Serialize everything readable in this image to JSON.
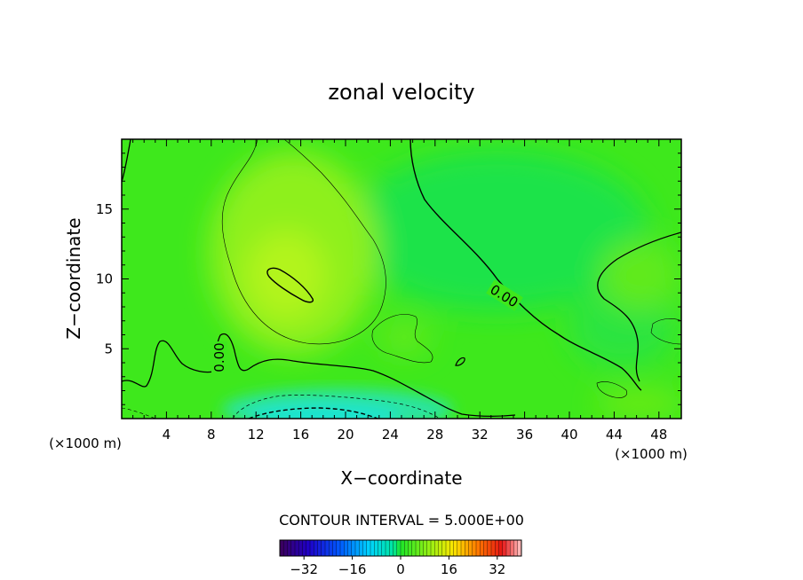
{
  "chart_data": {
    "type": "heatmap",
    "title": "zonal velocity",
    "xlabel": "X−coordinate",
    "ylabel": "Z−coordinate",
    "x_unit_left": "(×1000 m)",
    "x_unit_right": "(×1000 m)",
    "xlim": [
      0,
      50
    ],
    "ylim": [
      0,
      20
    ],
    "xticks": [
      4,
      8,
      12,
      16,
      20,
      24,
      28,
      32,
      36,
      40,
      44,
      48
    ],
    "yticks": [
      5,
      10,
      15
    ],
    "contour_interval_text": "CONTOUR INTERVAL = 5.000E+00",
    "contour_labels": [
      {
        "text": "0.00",
        "x": 34.0,
        "z": 8.4
      },
      {
        "text": "0.00",
        "x": 9.4,
        "z": 4.7
      }
    ],
    "colorbar": {
      "range": [
        -40,
        40
      ],
      "ticks": [
        -32,
        -16,
        0,
        16,
        32
      ],
      "tick_labels": [
        "−32",
        "−16",
        "0",
        "16",
        "32"
      ]
    },
    "field_features": [
      {
        "label": "positive maximum",
        "x": 14,
        "z": 9.5,
        "value": 10
      },
      {
        "label": "negative minimum",
        "x": 16,
        "z": 0.8,
        "value": -10
      },
      {
        "label": "positive pocket",
        "x": 47,
        "z": 6,
        "value": 3
      }
    ]
  }
}
